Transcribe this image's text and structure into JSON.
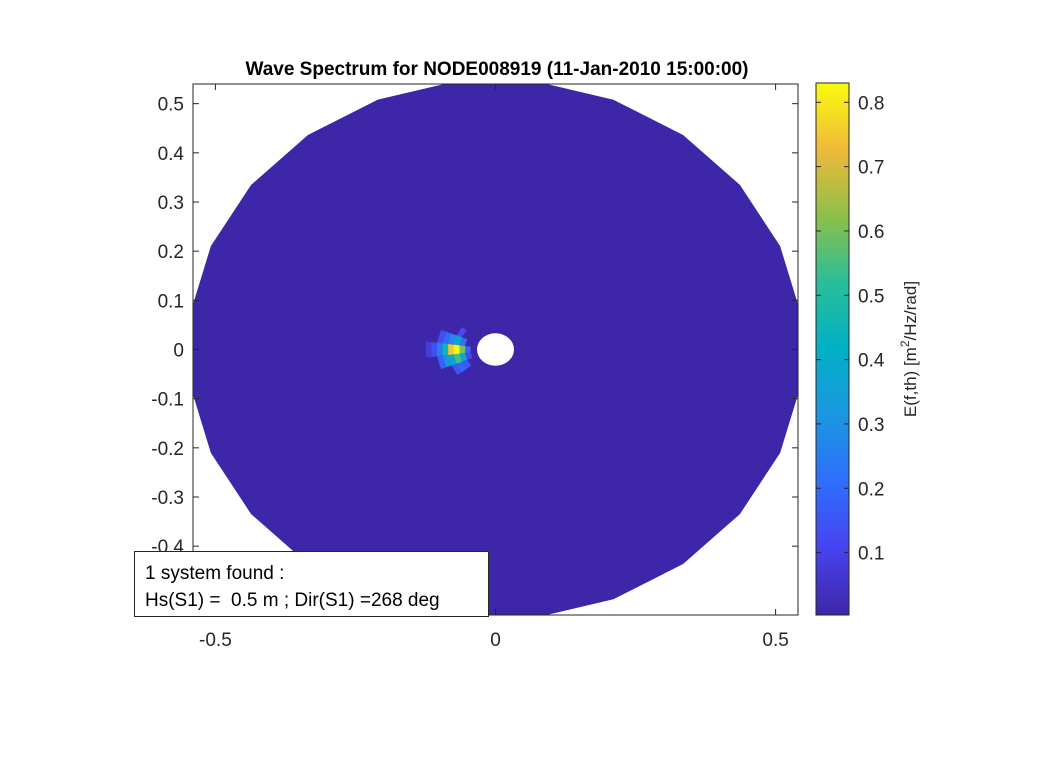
{
  "chart_data": {
    "type": "heatmap",
    "subtype": "polar-directional-wave-spectrum",
    "title": "Wave Spectrum for NODE008919 (11-Jan-2010 15:00:00)",
    "xlim": [
      -0.54,
      0.54
    ],
    "ylim": [
      -0.54,
      0.54
    ],
    "x_ticks": [
      -0.5,
      0,
      0.5
    ],
    "x_tick_labels": [
      "-0.5",
      "0",
      "0.5"
    ],
    "y_ticks": [
      0.5,
      0.4,
      0.3,
      0.2,
      0.1,
      0,
      -0.1,
      -0.2,
      -0.3,
      -0.4
    ],
    "y_tick_labels": [
      "0.5",
      "0.4",
      "0.3",
      "0.2",
      "0.1",
      "0",
      "-0.1",
      "-0.2",
      "-0.3",
      "-0.4"
    ],
    "grid": false,
    "frequency_range": [
      0.033,
      0.55
    ],
    "directions_count": 24,
    "colorbar": {
      "label_prefix": "E(f,th) [m",
      "label_sup": "2",
      "label_suffix": "/Hz/rad]",
      "range": [
        0.003,
        0.83
      ],
      "ticks": [
        0.1,
        0.2,
        0.3,
        0.4,
        0.5,
        0.6,
        0.7,
        0.8
      ],
      "tick_labels": [
        "0.1",
        "0.2",
        "0.3",
        "0.4",
        "0.5",
        "0.6",
        "0.7",
        "0.8"
      ],
      "colormap": "parula"
    },
    "energy_peak": {
      "values": [
        {
          "f": 0.07,
          "theta": 180,
          "E": 0.83
        },
        {
          "f": 0.08,
          "theta": 180,
          "E": 0.75
        },
        {
          "f": 0.06,
          "theta": 180,
          "E": 0.6
        },
        {
          "f": 0.09,
          "theta": 180,
          "E": 0.45
        },
        {
          "f": 0.07,
          "theta": 195,
          "E": 0.55
        },
        {
          "f": 0.07,
          "theta": 165,
          "E": 0.35
        },
        {
          "f": 0.1,
          "theta": 180,
          "E": 0.25
        },
        {
          "f": 0.08,
          "theta": 195,
          "E": 0.4
        },
        {
          "f": 0.08,
          "theta": 165,
          "E": 0.28
        },
        {
          "f": 0.06,
          "theta": 195,
          "E": 0.38
        },
        {
          "f": 0.06,
          "theta": 165,
          "E": 0.22
        },
        {
          "f": 0.09,
          "theta": 195,
          "E": 0.3
        },
        {
          "f": 0.09,
          "theta": 165,
          "E": 0.2
        },
        {
          "f": 0.07,
          "theta": 210,
          "E": 0.2
        },
        {
          "f": 0.08,
          "theta": 210,
          "E": 0.15
        },
        {
          "f": 0.11,
          "theta": 180,
          "E": 0.14
        },
        {
          "f": 0.1,
          "theta": 195,
          "E": 0.18
        },
        {
          "f": 0.1,
          "theta": 165,
          "E": 0.13
        },
        {
          "f": 0.07,
          "theta": 150,
          "E": 0.12
        },
        {
          "f": 0.06,
          "theta": 210,
          "E": 0.16
        },
        {
          "f": 0.12,
          "theta": 180,
          "E": 0.08
        },
        {
          "f": 0.05,
          "theta": 180,
          "E": 0.2
        },
        {
          "f": 0.05,
          "theta": 195,
          "E": 0.12
        }
      ]
    },
    "background_energy": 0.003,
    "annotation": {
      "line1": "1 system found :",
      "line2": "Hs(S1) =  0.5 m ; Dir(S1) =268 deg"
    }
  }
}
